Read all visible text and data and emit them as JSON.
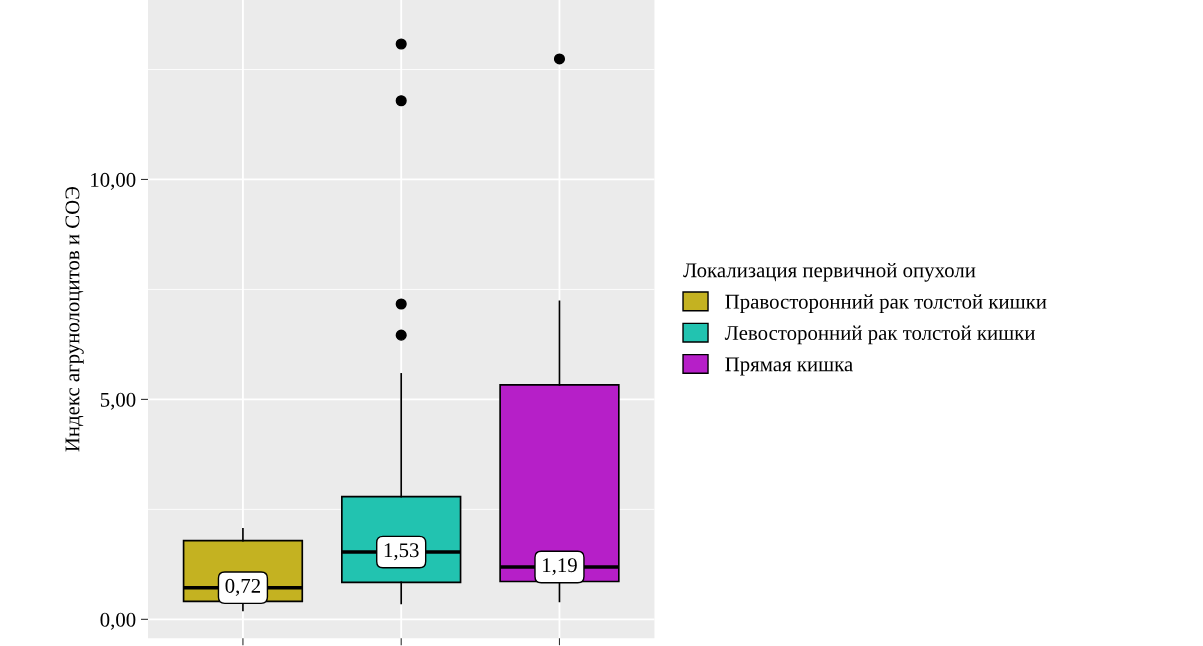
{
  "chart_data": {
    "type": "box",
    "ylabel": "Индекс агрунолоцитов и СОЭ",
    "legend_title": "Локализация первичной опухоли",
    "categories": [
      null,
      null,
      null
    ],
    "series": [
      {
        "name": "Правосторонний рак толстой кишки",
        "color": "#c4b221",
        "boxes": [
          {
            "low": 0.2,
            "q1": 0.41,
            "median": 0.72,
            "q3": 1.79,
            "high": 2.06
          },
          null,
          null
        ],
        "value_labels": [
          "0,72",
          null,
          null
        ]
      },
      {
        "name": "Левосторонний рак толстой кишки",
        "color": "#22c3b0",
        "boxes": [
          null,
          {
            "low": 0.36,
            "q1": 0.84,
            "median": 1.53,
            "q3": 2.79,
            "high": 5.58,
            "outliers": [
              6.46,
              7.17,
              11.79,
              13.08
            ]
          },
          null
        ],
        "value_labels": [
          null,
          "1,53",
          null
        ]
      },
      {
        "name": "Прямая кишка",
        "color": "#b61fc8",
        "boxes": [
          null,
          null,
          {
            "low": 0.41,
            "q1": 0.86,
            "median": 1.19,
            "q3": 5.33,
            "high": 7.23,
            "outliers": [
              12.74
            ]
          }
        ],
        "value_labels": [
          null,
          null,
          "1,19"
        ]
      }
    ],
    "ylim": [
      -0.43,
      14.08
    ],
    "yticks": [
      {
        "value": 0,
        "label": "0,00"
      },
      {
        "value": 5,
        "label": "5,00"
      },
      {
        "value": 10,
        "label": "10,00"
      }
    ],
    "tick_labels": "y",
    "grid": true,
    "legend": "right"
  }
}
